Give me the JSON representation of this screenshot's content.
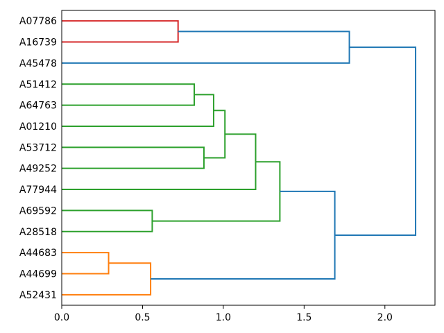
{
  "figure": {
    "kind": "dendrogram-plot",
    "background": "#ffffff"
  },
  "chart_data": {
    "type": "dendrogram",
    "orientation": "right",
    "title": "",
    "xlabel": "",
    "ylabel": "",
    "grid": false,
    "xlim": [
      0,
      2.31
    ],
    "x_ticks": [
      {
        "value": 0.0,
        "label": "0.0"
      },
      {
        "value": 0.5,
        "label": "0.5"
      },
      {
        "value": 1.0,
        "label": "1.0"
      },
      {
        "value": 1.5,
        "label": "1.5"
      },
      {
        "value": 2.0,
        "label": "2.0"
      }
    ],
    "leaf_labels": [
      "A07786",
      "A16739",
      "A45478",
      "A51412",
      "A64763",
      "A01210",
      "A53712",
      "A49252",
      "A77944",
      "A69592",
      "A28518",
      "A44683",
      "A44699",
      "A52431"
    ],
    "merges": [
      {
        "id": "m1",
        "a": "A44683",
        "b": "A44699",
        "height": 0.29,
        "color_key": "orange"
      },
      {
        "id": "m2",
        "a": "m1",
        "b": "A52431",
        "height": 0.55,
        "color_key": "orange"
      },
      {
        "id": "m3",
        "a": "A69592",
        "b": "A28518",
        "height": 0.56,
        "color_key": "green"
      },
      {
        "id": "m4",
        "a": "A07786",
        "b": "A16739",
        "height": 0.72,
        "color_key": "red"
      },
      {
        "id": "m5",
        "a": "A51412",
        "b": "A64763",
        "height": 0.82,
        "color_key": "green"
      },
      {
        "id": "m6",
        "a": "A53712",
        "b": "A49252",
        "height": 0.88,
        "color_key": "green"
      },
      {
        "id": "m7",
        "a": "m5",
        "b": "A01210",
        "height": 0.94,
        "color_key": "green"
      },
      {
        "id": "m8",
        "a": "m7",
        "b": "m6",
        "height": 1.01,
        "color_key": "green"
      },
      {
        "id": "m9",
        "a": "m8",
        "b": "A77944",
        "height": 1.2,
        "color_key": "green"
      },
      {
        "id": "m10",
        "a": "m9",
        "b": "m3",
        "height": 1.35,
        "color_key": "green"
      },
      {
        "id": "m11",
        "a": "m10",
        "b": "m2",
        "height": 1.69,
        "color_key": "blue"
      },
      {
        "id": "m12",
        "a": "m4",
        "b": "A45478",
        "height": 1.78,
        "color_key": "blue"
      },
      {
        "id": "m13",
        "a": "m12",
        "b": "m11",
        "height": 2.19,
        "color_key": "blue"
      }
    ],
    "colors": {
      "blue": "#1f77b4",
      "orange": "#ff7f0e",
      "green": "#2ca02c",
      "red": "#d62728"
    },
    "axis_color": "#000000"
  }
}
